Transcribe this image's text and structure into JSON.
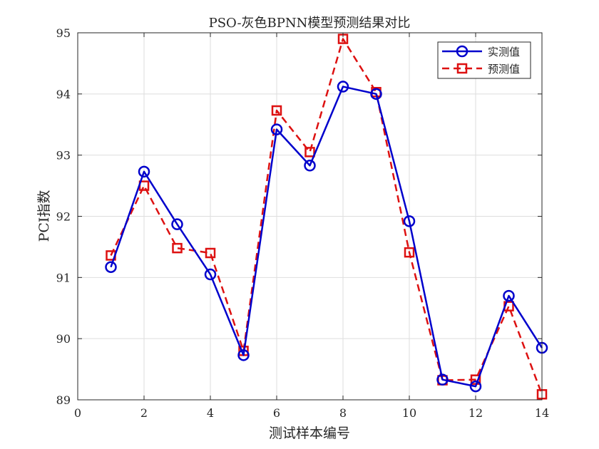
{
  "chart_data": {
    "type": "line",
    "title": "PSO-灰色BPNN模型预测结果对比",
    "xlabel": "测试样本编号",
    "ylabel": "PCI指数",
    "xlim": [
      0,
      14
    ],
    "ylim": [
      89,
      95
    ],
    "xticks": [
      "0",
      "2",
      "4",
      "6",
      "8",
      "10",
      "12",
      "14"
    ],
    "yticks": [
      "89",
      "90",
      "91",
      "92",
      "93",
      "94",
      "95"
    ],
    "grid": true,
    "legend_position": "top-right",
    "x": [
      1,
      2,
      3,
      4,
      5,
      6,
      7,
      8,
      9,
      10,
      11,
      12,
      13,
      14
    ],
    "series": [
      {
        "name": "实测值",
        "color": "#0000cc",
        "line_style": "solid",
        "marker": "circle",
        "values": [
          91.17,
          92.73,
          91.87,
          91.05,
          89.73,
          93.42,
          92.83,
          94.12,
          94.0,
          91.92,
          89.33,
          89.22,
          90.7,
          89.85
        ]
      },
      {
        "name": "预测值",
        "color": "#dd1111",
        "line_style": "dashed",
        "marker": "square",
        "values": [
          91.36,
          92.5,
          91.48,
          91.4,
          89.8,
          93.73,
          93.05,
          94.9,
          94.03,
          91.41,
          89.32,
          89.33,
          90.53,
          89.09
        ]
      }
    ]
  }
}
